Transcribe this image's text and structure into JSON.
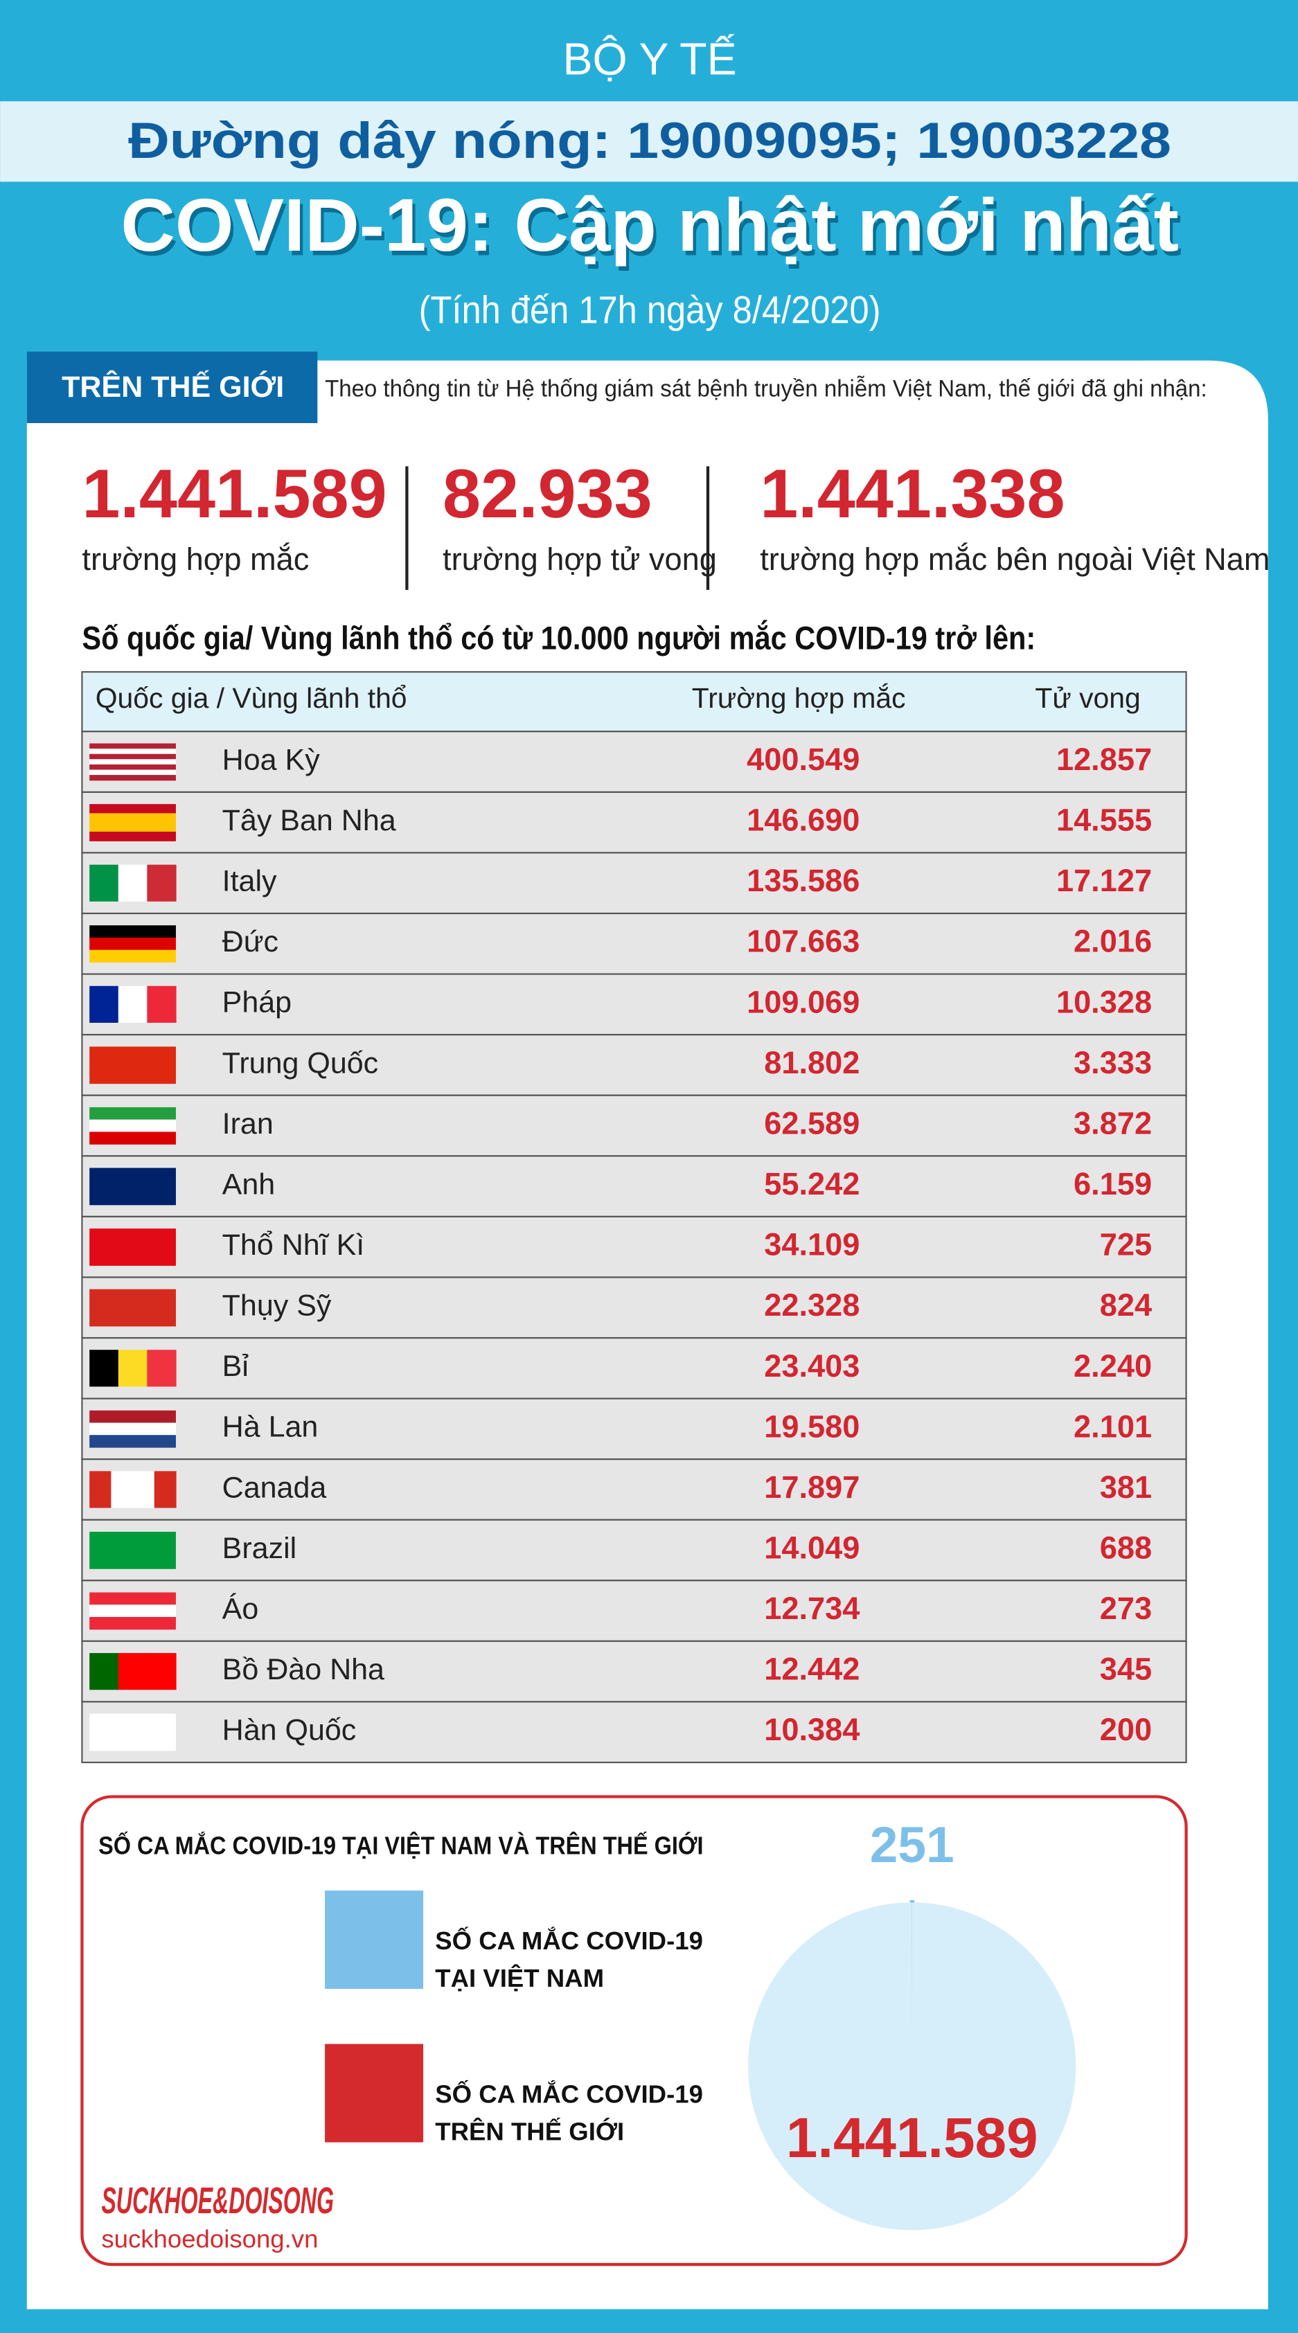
{
  "header": {
    "ministry": "BỘ Y TẾ",
    "hotline": "Đường dây nóng: 19009095; 19003228",
    "title": "COVID-19: Cập nhật mới nhất",
    "subtitle": "(Tính đến 17h ngày 8/4/2020)"
  },
  "world": {
    "tab": "TRÊN THẾ GIỚI",
    "intro": "Theo thông tin từ Hệ thống giám sát bệnh truyền nhiễm Việt Nam, thế giới đã ghi nhận:",
    "stats": [
      {
        "value": "1.441.589",
        "label": "trường hợp mắc"
      },
      {
        "value": "82.933",
        "label": "trường hợp tử vong"
      },
      {
        "value": "1.441.338",
        "label": "trường hợp  mắc bên ngoài Việt Nam"
      }
    ]
  },
  "table": {
    "title": "Số quốc gia/ Vùng lãnh thổ có từ 10.000 người  mắc COVID-19 trở lên:",
    "headers": [
      "Quốc gia / Vùng lãnh thổ",
      "Trường hợp mắc",
      "Tử vong"
    ],
    "rows": [
      [
        "Hoa Kỳ",
        "400.549",
        "12.857"
      ],
      [
        "Tây Ban Nha",
        "146.690",
        "14.555"
      ],
      [
        "Italy",
        "135.586",
        "17.127"
      ],
      [
        "Đức",
        "107.663",
        "2.016"
      ],
      [
        "Pháp",
        "109.069",
        "10.328"
      ],
      [
        "Trung Quốc",
        "81.802",
        "3.333"
      ],
      [
        "Iran",
        "62.589",
        "3.872"
      ],
      [
        "Anh",
        "55.242",
        "6.159"
      ],
      [
        "Thổ Nhĩ Kì",
        "34.109",
        "725"
      ],
      [
        "Thụy Sỹ",
        "22.328",
        "824"
      ],
      [
        "Bỉ",
        "23.403",
        "2.240"
      ],
      [
        "Hà Lan",
        "19.580",
        "2.101"
      ],
      [
        "Canada",
        "17.897",
        "381"
      ],
      [
        "Brazil",
        "14.049",
        "688"
      ],
      [
        "Áo",
        "12.734",
        "273"
      ],
      [
        "Bồ Đào Nha",
        "12.442",
        "345"
      ],
      [
        "Hàn Quốc",
        "10.384",
        "200"
      ]
    ]
  },
  "comparison": {
    "title": "SỐ CA MẮC COVID-19 TẠI VIỆT NAM VÀ TRÊN THẾ GIỚI",
    "type": "pie",
    "series": [
      {
        "name_lines": [
          "SỐ CA MẮC COVID-19",
          "TẠI VIỆT NAM"
        ],
        "color": "#7cc0ea",
        "values": [
          251
        ],
        "value_labels": [
          "251"
        ]
      },
      {
        "name_lines": [
          "SỐ CA MẮC COVID-19",
          "TRÊN THẾ GIỚI"
        ],
        "color": "#d42a2e",
        "values": [
          1441589
        ],
        "value_labels": [
          "1.441.589"
        ]
      }
    ]
  },
  "footer": {
    "logo": "SUCKHOE&DOISONG",
    "url": "suckhoedoisong.vn"
  }
}
